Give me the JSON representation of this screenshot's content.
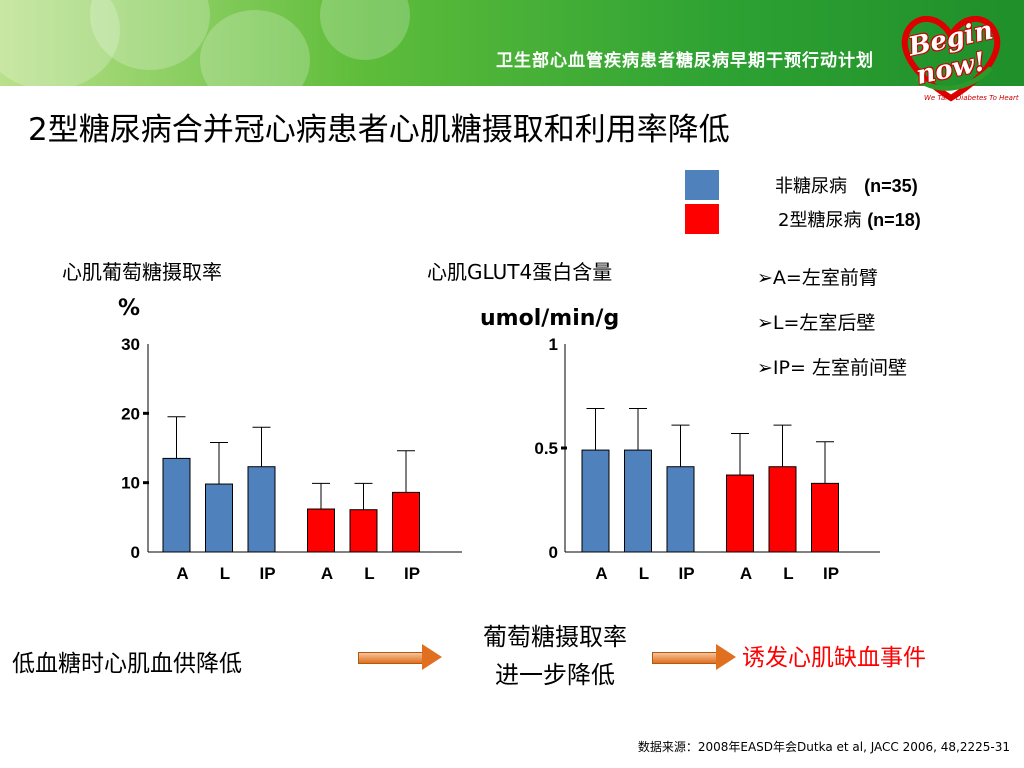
{
  "header": {
    "banner_title": "卫生部心血管疾病患者糖尿病早期干预行动计划",
    "logo_line1": "Begin",
    "logo_line2": "now!",
    "logo_tagline": "We Take Diabetes To Heart"
  },
  "title": "2型糖尿病合并冠心病患者心肌糖摄取和利用率降低",
  "legend": [
    {
      "name": "非糖尿病",
      "n": "(n=35)",
      "color": "#4f81bd"
    },
    {
      "name": "2型糖尿病",
      "n": "(n=18)",
      "color": "#ff0000"
    }
  ],
  "notes": [
    "➢A=左室前臂",
    "➢L=左室后壁",
    "➢IP= 左室前间壁"
  ],
  "chart_data": [
    {
      "type": "bar",
      "title": "心肌葡萄糖摄取率",
      "ylabel": "%",
      "categories": [
        "A",
        "L",
        "IP",
        "A",
        "L",
        "IP"
      ],
      "groups": [
        "非糖尿病",
        "非糖尿病",
        "非糖尿病",
        "2型糖尿病",
        "2型糖尿病",
        "2型糖尿病"
      ],
      "values": [
        13.5,
        9.8,
        12.3,
        6.2,
        6.1,
        8.6
      ],
      "error_upper": [
        19.5,
        15.8,
        18.0,
        9.9,
        9.9,
        14.6
      ],
      "ylim": [
        0,
        30
      ],
      "yticks": [
        "0",
        "10",
        "20",
        "30"
      ],
      "ytick_values": [
        0,
        10,
        20,
        30
      ]
    },
    {
      "type": "bar",
      "title": "心肌GLUT4蛋白含量",
      "ylabel": "umol/min/g",
      "categories": [
        "A",
        "L",
        "IP",
        "A",
        "L",
        "IP"
      ],
      "groups": [
        "非糖尿病",
        "非糖尿病",
        "非糖尿病",
        "2型糖尿病",
        "2型糖尿病",
        "2型糖尿病"
      ],
      "values": [
        0.49,
        0.49,
        0.41,
        0.37,
        0.41,
        0.33
      ],
      "error_upper": [
        0.69,
        0.69,
        0.61,
        0.57,
        0.61,
        0.53
      ],
      "ylim": [
        0,
        1
      ],
      "yticks": [
        "0",
        "0.5",
        "1"
      ],
      "ytick_values": [
        0,
        0.5,
        1
      ]
    }
  ],
  "flow": {
    "left": "低血糖时心肌血供降低",
    "middle_line1": "葡萄糖摄取率",
    "middle_line2": "进一步降低",
    "right": "诱发心肌缺血事件",
    "right_color": "#ff0000"
  },
  "source": "数据来源：2008年EASD年会Dutka et al, JACC 2006, 48,2225-31"
}
